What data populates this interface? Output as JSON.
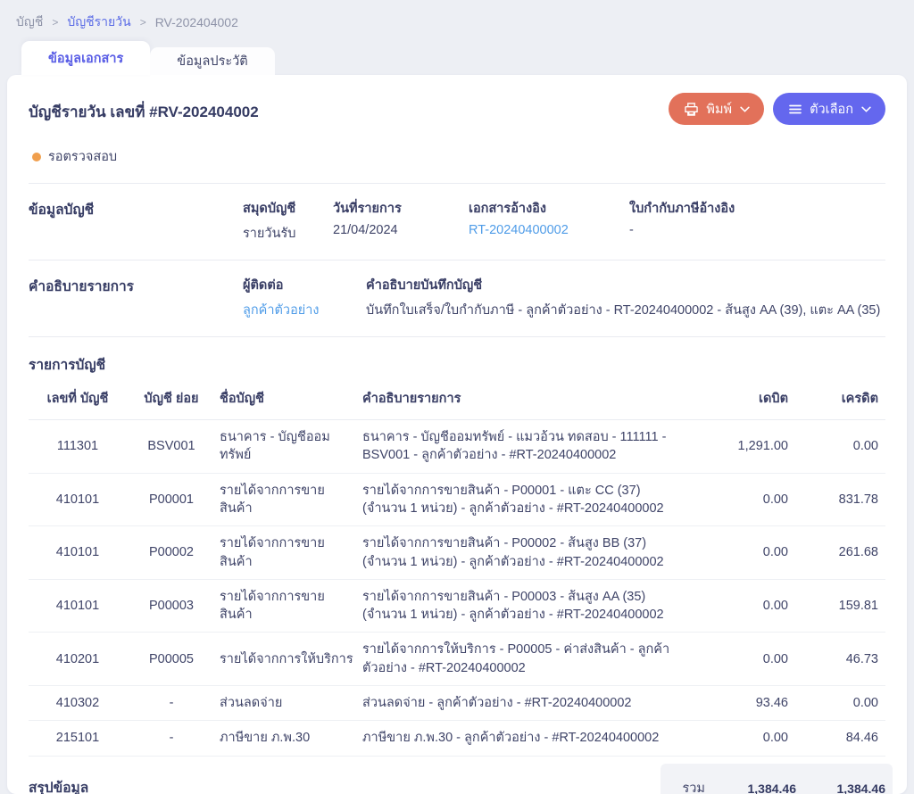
{
  "breadcrumb": {
    "separator": ">",
    "items": [
      {
        "label": "บัญชี"
      },
      {
        "label": "บัญชีรายวัน"
      },
      {
        "label": "RV-202404002"
      }
    ]
  },
  "tabs": [
    {
      "label": "ข้อมูลเอกสาร",
      "active": true
    },
    {
      "label": "ข้อมูลประวัติ",
      "active": false
    }
  ],
  "header": {
    "title": "บัญชีรายวัน เลขที่ #RV-202404002",
    "status": "รอตรวจสอบ",
    "print_label": "พิมพ์",
    "options_label": "ตัวเลือก"
  },
  "icons": {
    "print_button": "printer-icon",
    "options_button": "menu-icon",
    "dropdowns": "chevron-down-icon",
    "status": "status-dot"
  },
  "account_info": {
    "section_title": "ข้อมูลบัญชี",
    "fields": [
      {
        "label": "สมุดบัญชี",
        "value": "รายวันรับ"
      },
      {
        "label": "วันที่รายการ",
        "value": "21/04/2024"
      },
      {
        "label": "เอกสารอ้างอิง",
        "value": "RT-20240400002"
      },
      {
        "label": "ใบกำกับภาษีอ้างอิง",
        "value": "-"
      }
    ]
  },
  "description_section": {
    "section_title": "คำอธิบายรายการ",
    "contact_label": "ผู้ติดต่อ",
    "contact_value": "ลูกค้าตัวอย่าง",
    "note_label": "คำอธิบายบันทึกบัญชี",
    "note_value": "บันทึกใบเสร็จ/ใบกำกับภาษี - ลูกค้าตัวอย่าง - RT-20240400002 - ส้นสูง AA (39), แตะ AA (35)"
  },
  "entries": {
    "section_title": "รายการบัญชี",
    "columns": [
      "เลขที่ บัญชี",
      "บัญชี ย่อย",
      "ชื่อบัญชี",
      "คำอธิบายรายการ",
      "เดบิต",
      "เครดิต"
    ],
    "rows": [
      {
        "account_no": "111301",
        "sub_account": "BSV001",
        "account_name": "ธนาคาร - บัญชีออมทรัพย์",
        "description": "ธนาคาร - บัญชีออมทรัพย์ - แมวอ้วน ทดสอบ - 111111 - BSV001 - ลูกค้าตัวอย่าง - #RT-20240400002",
        "debit": "1,291.00",
        "credit": "0.00"
      },
      {
        "account_no": "410101",
        "sub_account": "P00001",
        "account_name": "รายได้จากการขายสินค้า",
        "description": "รายได้จากการขายสินค้า - P00001 - แตะ CC (37) (จำนวน 1 หน่วย) - ลูกค้าตัวอย่าง - #RT-20240400002",
        "debit": "0.00",
        "credit": "831.78"
      },
      {
        "account_no": "410101",
        "sub_account": "P00002",
        "account_name": "รายได้จากการขายสินค้า",
        "description": "รายได้จากการขายสินค้า - P00002 - ส้นสูง BB (37) (จำนวน 1 หน่วย) - ลูกค้าตัวอย่าง - #RT-20240400002",
        "debit": "0.00",
        "credit": "261.68"
      },
      {
        "account_no": "410101",
        "sub_account": "P00003",
        "account_name": "รายได้จากการขายสินค้า",
        "description": "รายได้จากการขายสินค้า - P00003 - ส้นสูง AA (35) (จำนวน 1 หน่วย) - ลูกค้าตัวอย่าง - #RT-20240400002",
        "debit": "0.00",
        "credit": "159.81"
      },
      {
        "account_no": "410201",
        "sub_account": "P00005",
        "account_name": "รายได้จากการให้บริการ",
        "description": "รายได้จากการให้บริการ - P00005 - ค่าส่งสินค้า - ลูกค้าตัวอย่าง - #RT-20240400002",
        "debit": "0.00",
        "credit": "46.73"
      },
      {
        "account_no": "410302",
        "sub_account": "-",
        "account_name": "ส่วนลดจ่าย",
        "description": "ส่วนลดจ่าย - ลูกค้าตัวอย่าง - #RT-20240400002",
        "debit": "93.46",
        "credit": "0.00"
      },
      {
        "account_no": "215101",
        "sub_account": "-",
        "account_name": "ภาษีขาย ภ.พ.30",
        "description": "ภาษีขาย ภ.พ.30 - ลูกค้าตัวอย่าง - #RT-20240400002",
        "debit": "0.00",
        "credit": "84.46"
      }
    ]
  },
  "summary": {
    "section_title": "สรุปข้อมูล",
    "total_label": "รวม",
    "total_debit": "1,384.46",
    "total_credit": "1,384.46"
  },
  "colors": {
    "page_background": "#edeff4",
    "card_background": "#ffffff",
    "text_navy": "#3f4468",
    "breadcrumb_link": "#5b6ce6",
    "active_tab_text": "#5a5ee6",
    "link_blue": "#4f9ce8",
    "print_button": "#e2715a",
    "options_button": "#6467ee",
    "status_orange": "#f09f4d",
    "summary_box": "#f2f3f7"
  }
}
